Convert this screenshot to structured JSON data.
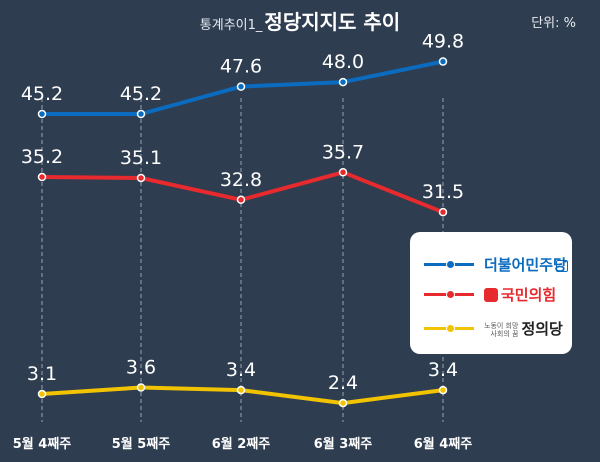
{
  "chart_data": {
    "type": "line",
    "title": "정당지지도 추이",
    "title_prefix": "통계추이1_",
    "unit": "단위: %",
    "categories": [
      "5월 4째주",
      "5월 5째주",
      "6월 2째주",
      "6월 3째주",
      "6월 4째주"
    ],
    "series": [
      {
        "name": "더불어민주당",
        "color": "#0b6bbf",
        "values": [
          45.2,
          45.2,
          47.6,
          48.0,
          49.8
        ]
      },
      {
        "name": "국민의힘",
        "color": "#e62a2e",
        "values": [
          35.2,
          35.1,
          32.8,
          35.7,
          31.5
        ]
      },
      {
        "name": "정의당",
        "color": "#f2c300",
        "values": [
          3.1,
          3.6,
          3.4,
          2.4,
          3.4
        ]
      }
    ],
    "xlabel": "",
    "ylabel": "",
    "legend_position": "right"
  },
  "legend": {
    "dp_label": "더불어민주당",
    "ppp_label": "국민의힘",
    "jp_label": "정의당",
    "jp_note_line1": "노동이 희망",
    "jp_note_line2": "사회의 꿈"
  },
  "colors": {
    "background": "#2e3d50",
    "dp": "#0b6bbf",
    "ppp": "#e62a2e",
    "jp": "#f2c300"
  }
}
